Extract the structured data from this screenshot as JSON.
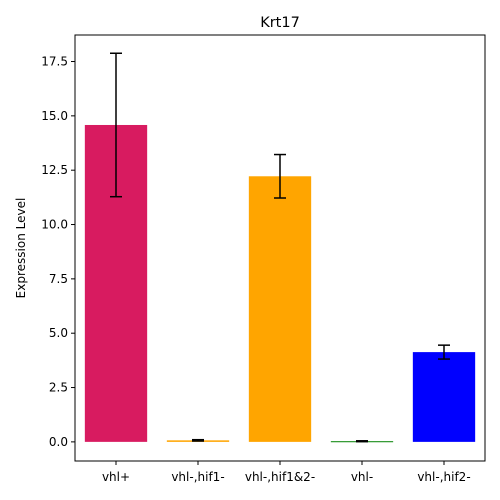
{
  "chart_data": {
    "type": "bar",
    "title": "Krt17",
    "xlabel": "",
    "ylabel": "Expression Level",
    "categories": [
      "vhl+",
      "vhl-,hif1-",
      "vhl-,hif1&2-",
      "vhl-",
      "vhl-,hif2-"
    ],
    "values": [
      14.58,
      0.07,
      12.22,
      0.03,
      4.13
    ],
    "errors": [
      3.3,
      0.03,
      1.0,
      0.02,
      0.32
    ],
    "colors": [
      "#d81b60",
      "#ffa500",
      "#ffa500",
      "#008000",
      "#0000ff"
    ],
    "ylim": [
      -0.88,
      18.72
    ],
    "yticks": [
      0.0,
      2.5,
      5.0,
      7.5,
      10.0,
      12.5,
      15.0,
      17.5
    ],
    "ytick_labels": [
      "0.0",
      "2.5",
      "5.0",
      "7.5",
      "10.0",
      "12.5",
      "15.0",
      "17.5"
    ],
    "grid": false
  }
}
